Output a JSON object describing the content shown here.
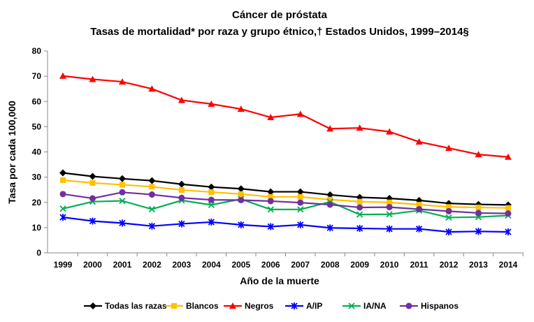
{
  "chart_data": {
    "type": "line",
    "title": "Cáncer de próstata",
    "subtitle": "Tasas de mortalidad* por raza y grupo étnico,† Estados Unidos, 1999–2014§",
    "xlabel": "Año de la muerte",
    "ylabel": "Tasa por cada 100,000",
    "ylim": [
      0,
      80
    ],
    "yticks": [
      0,
      10,
      20,
      30,
      40,
      50,
      60,
      70,
      80
    ],
    "grid": false,
    "legend": "bottom",
    "x": [
      "1999",
      "2000",
      "2001",
      "2002",
      "2003",
      "2004",
      "2005",
      "2006",
      "2007",
      "2008",
      "2009",
      "2010",
      "2011",
      "2012",
      "2013",
      "2014"
    ],
    "series": [
      {
        "name": "Todas las razas",
        "color": "#000000",
        "marker": "diamond",
        "values": [
          31.7,
          30.3,
          29.4,
          28.6,
          27.2,
          26.1,
          25.4,
          24.2,
          24.2,
          23.0,
          22.0,
          21.6,
          20.8,
          19.6,
          19.2,
          19.0
        ]
      },
      {
        "name": "Blancos",
        "color": "#FFC000",
        "marker": "square",
        "values": [
          28.8,
          27.7,
          27.0,
          26.2,
          24.9,
          24.1,
          23.3,
          22.2,
          22.2,
          21.1,
          20.3,
          20.0,
          19.1,
          18.2,
          18.0,
          17.8
        ]
      },
      {
        "name": "Negros",
        "color": "#FF0000",
        "marker": "triangle",
        "values": [
          70.1,
          68.8,
          67.8,
          65.0,
          60.5,
          59.0,
          57.0,
          53.7,
          55.0,
          49.2,
          49.5,
          48.0,
          44.0,
          41.5,
          39.0,
          38.0
        ]
      },
      {
        "name": "A/IP",
        "color": "#0000FF",
        "marker": "star",
        "values": [
          14.1,
          12.6,
          11.8,
          10.6,
          11.5,
          12.2,
          11.1,
          10.4,
          11.1,
          9.9,
          9.7,
          9.5,
          9.5,
          8.3,
          8.5,
          8.3
        ]
      },
      {
        "name": "IA/NA",
        "color": "#00B050",
        "marker": "x",
        "values": [
          17.5,
          20.3,
          20.6,
          17.3,
          20.8,
          19.0,
          21.3,
          17.2,
          17.2,
          20.2,
          15.2,
          15.3,
          16.8,
          14.0,
          14.2,
          14.8
        ]
      },
      {
        "name": "Hispanos",
        "color": "#7030A0",
        "marker": "circle",
        "values": [
          23.3,
          21.6,
          24.0,
          23.1,
          21.8,
          21.0,
          20.9,
          20.5,
          19.9,
          19.1,
          18.0,
          18.1,
          17.3,
          16.5,
          15.8,
          15.6
        ]
      }
    ]
  }
}
